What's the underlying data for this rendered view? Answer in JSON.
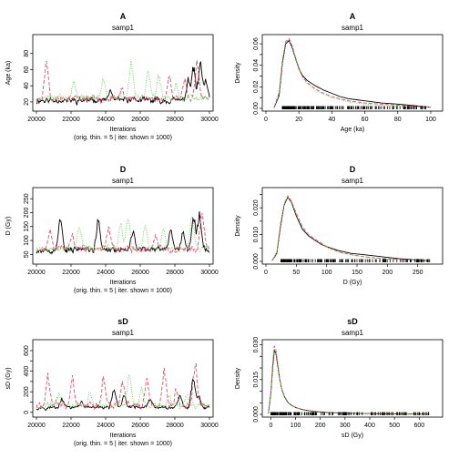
{
  "chart_data": [
    {
      "type": "line",
      "title": "A",
      "subtitle": "samp1",
      "xlabel": "Iterations",
      "xlabel2": "(orig. thin. = 5 | iter. shown = 1000)",
      "ylabel": "Age (ka)",
      "xlim": [
        20000,
        30000
      ],
      "ylim": [
        12,
        100
      ],
      "xticks": [
        20000,
        22000,
        24000,
        26000,
        28000,
        30000
      ],
      "yticks": [
        20,
        40,
        60,
        80
      ],
      "series": [
        {
          "color": "#000000",
          "dash": "",
          "seed": 11,
          "base": 18,
          "peak": 86,
          "bursts": [
            [
              23550,
              25
            ],
            [
              24250,
              40
            ],
            [
              25550,
              28
            ],
            [
              28750,
              58
            ],
            [
              29050,
              82
            ],
            [
              29450,
              85
            ],
            [
              29750,
              60
            ]
          ]
        },
        {
          "color": "#df536b",
          "dash": "4,2",
          "seed": 23,
          "base": 20,
          "peak": 88,
          "bursts": [
            [
              20550,
              85
            ],
            [
              24900,
              44
            ],
            [
              27650,
              65
            ],
            [
              28550,
              58
            ],
            [
              29250,
              88
            ]
          ]
        },
        {
          "color": "#61d04f",
          "dash": "1,1.5",
          "seed": 37,
          "base": 22,
          "peak": 86,
          "bursts": [
            [
              22150,
              52
            ],
            [
              23850,
              58
            ],
            [
              25450,
              86
            ],
            [
              26450,
              70
            ],
            [
              27050,
              62
            ],
            [
              28050,
              50
            ]
          ]
        }
      ]
    },
    {
      "type": "line",
      "title": "A",
      "subtitle": "samp1",
      "xlabel": "Age (ka)",
      "ylabel": "Density",
      "xlim": [
        0,
        105
      ],
      "ylim": [
        0,
        0.066
      ],
      "xticks": [
        0,
        20,
        40,
        60,
        80,
        100
      ],
      "yticks": [
        0.0,
        0.01,
        0.02,
        0.03,
        0.04,
        0.05,
        0.06
      ],
      "ytick_labels": [
        "0.00",
        "",
        "0.02",
        "",
        "0.04",
        "",
        "0.06"
      ],
      "rug_range": [
        10,
        97
      ],
      "series": [
        {
          "color": "#000000",
          "dash": "",
          "x": [
            5,
            8,
            10,
            12,
            14,
            16,
            18,
            20,
            22,
            25,
            30,
            35,
            40,
            45,
            50,
            55,
            60,
            70,
            80,
            90,
            100
          ],
          "y": [
            0.0005,
            0.012,
            0.042,
            0.06,
            0.063,
            0.056,
            0.046,
            0.037,
            0.031,
            0.026,
            0.021,
            0.017,
            0.014,
            0.011,
            0.009,
            0.008,
            0.007,
            0.005,
            0.004,
            0.0025,
            0.001
          ]
        },
        {
          "color": "#df536b",
          "dash": "4,2",
          "x": [
            5,
            8,
            10,
            12,
            14,
            16,
            18,
            20,
            22,
            25,
            30,
            35,
            40,
            45,
            50,
            55,
            60,
            70,
            80,
            90,
            100
          ],
          "y": [
            0.001,
            0.015,
            0.045,
            0.062,
            0.065,
            0.058,
            0.047,
            0.038,
            0.03,
            0.024,
            0.018,
            0.014,
            0.011,
            0.009,
            0.007,
            0.006,
            0.005,
            0.004,
            0.003,
            0.002,
            0.001
          ]
        },
        {
          "color": "#61d04f",
          "dash": "1,1.5",
          "x": [
            5,
            8,
            10,
            12,
            14,
            16,
            18,
            20,
            22,
            25,
            30,
            35,
            40,
            45,
            50,
            55,
            60,
            70,
            80,
            90,
            100
          ],
          "y": [
            0.0005,
            0.013,
            0.043,
            0.061,
            0.064,
            0.057,
            0.046,
            0.036,
            0.029,
            0.023,
            0.017,
            0.013,
            0.01,
            0.008,
            0.006,
            0.005,
            0.004,
            0.003,
            0.002,
            0.0015,
            0.001
          ]
        }
      ]
    },
    {
      "type": "line",
      "title": "D",
      "subtitle": "samp1",
      "xlabel": "Iterations",
      "xlabel2": "(orig. thin. = 5 | iter. shown = 1000)",
      "ylabel": "D (Gy)",
      "xlim": [
        20000,
        30000
      ],
      "ylim": [
        25,
        280
      ],
      "xticks": [
        20000,
        22000,
        24000,
        26000,
        28000,
        30000
      ],
      "yticks": [
        50,
        100,
        150,
        200,
        250
      ],
      "series": [
        {
          "color": "#000000",
          "dash": "",
          "seed": 53,
          "base": 55,
          "peak": 255,
          "bursts": [
            [
              21350,
              225
            ],
            [
              23550,
              210
            ],
            [
              25550,
              175
            ],
            [
              27750,
              180
            ],
            [
              28450,
              170
            ],
            [
              29050,
              265
            ],
            [
              29400,
              250
            ]
          ]
        },
        {
          "color": "#df536b",
          "dash": "4,2",
          "seed": 67,
          "base": 58,
          "peak": 260,
          "bursts": [
            [
              20750,
              190
            ],
            [
              22050,
              150
            ],
            [
              24150,
              180
            ],
            [
              26850,
              150
            ],
            [
              29550,
              260
            ]
          ]
        },
        {
          "color": "#61d04f",
          "dash": "1,1.5",
          "seed": 79,
          "base": 60,
          "peak": 250,
          "bursts": [
            [
              22450,
              200
            ],
            [
              24850,
              190
            ],
            [
              25250,
              245
            ],
            [
              26250,
              200
            ],
            [
              27300,
              170
            ],
            [
              28950,
              230
            ]
          ]
        }
      ]
    },
    {
      "type": "line",
      "title": "D",
      "subtitle": "samp1",
      "xlabel": "D (Gy)",
      "ylabel": "Density",
      "xlim": [
        0,
        285
      ],
      "ylim": [
        0,
        0.0265
      ],
      "xticks": [
        0,
        50,
        100,
        150,
        200,
        250
      ],
      "yticks": [
        0.0,
        0.005,
        0.01,
        0.015,
        0.02,
        0.025
      ],
      "ytick_labels": [
        "0.000",
        "",
        "0.010",
        "",
        "0.020",
        ""
      ],
      "rug_range": [
        25,
        270
      ],
      "series": [
        {
          "color": "#000000",
          "dash": "",
          "x": [
            10,
            18,
            24,
            30,
            36,
            42,
            50,
            60,
            70,
            80,
            90,
            100,
            120,
            140,
            160,
            180,
            200,
            220,
            250,
            270
          ],
          "y": [
            0.0002,
            0.003,
            0.013,
            0.021,
            0.024,
            0.022,
            0.017,
            0.012,
            0.0095,
            0.008,
            0.0065,
            0.0055,
            0.004,
            0.003,
            0.0025,
            0.002,
            0.0015,
            0.001,
            0.0005,
            0.0002
          ]
        },
        {
          "color": "#df536b",
          "dash": "4,2",
          "x": [
            10,
            18,
            24,
            30,
            36,
            42,
            50,
            60,
            70,
            80,
            90,
            100,
            120,
            140,
            160,
            180,
            200,
            220,
            250,
            270
          ],
          "y": [
            0.0002,
            0.0035,
            0.014,
            0.0215,
            0.0245,
            0.0225,
            0.018,
            0.013,
            0.01,
            0.0085,
            0.007,
            0.0055,
            0.0035,
            0.0025,
            0.0018,
            0.0013,
            0.001,
            0.0008,
            0.0005,
            0.0002
          ]
        },
        {
          "color": "#61d04f",
          "dash": "1,1.5",
          "x": [
            10,
            18,
            24,
            30,
            36,
            42,
            50,
            60,
            70,
            80,
            90,
            100,
            120,
            140,
            160,
            180,
            200,
            220,
            250,
            270
          ],
          "y": [
            0.0002,
            0.003,
            0.0135,
            0.021,
            0.0242,
            0.022,
            0.0175,
            0.0125,
            0.0098,
            0.0082,
            0.0067,
            0.0052,
            0.0034,
            0.0024,
            0.0017,
            0.0012,
            0.0009,
            0.0007,
            0.0004,
            0.0002
          ]
        }
      ]
    },
    {
      "type": "line",
      "title": "sD",
      "subtitle": "samp1",
      "xlabel": "Iterations",
      "xlabel2": "(orig. thin. = 5 | iter. shown = 1000)",
      "ylabel": "sD (Gy)",
      "xlim": [
        20000,
        30000
      ],
      "ylim": [
        -20,
        680
      ],
      "xticks": [
        20000,
        22000,
        24000,
        26000,
        28000,
        30000
      ],
      "yticks": [
        0,
        100,
        200,
        300,
        400,
        500,
        600
      ],
      "ytick_labels": [
        "0",
        "",
        "200",
        "",
        "400",
        "",
        "600"
      ],
      "series": [
        {
          "color": "#000000",
          "dash": "",
          "seed": 97,
          "base": 30,
          "peak": 320,
          "bursts": [
            [
              21450,
              170
            ],
            [
              22550,
              130
            ],
            [
              24450,
              300
            ],
            [
              25050,
              210
            ],
            [
              26550,
              170
            ],
            [
              28250,
              220
            ],
            [
              29050,
              480
            ],
            [
              29350,
              200
            ]
          ]
        },
        {
          "color": "#df536b",
          "dash": "4,2",
          "seed": 101,
          "base": 32,
          "peak": 640,
          "bursts": [
            [
              20650,
              480
            ],
            [
              22050,
              440
            ],
            [
              23850,
              460
            ],
            [
              24950,
              390
            ],
            [
              26350,
              430
            ],
            [
              27350,
              530
            ],
            [
              28050,
              300
            ],
            [
              29150,
              640
            ]
          ]
        },
        {
          "color": "#61d04f",
          "dash": "1,1.5",
          "seed": 113,
          "base": 35,
          "peak": 520,
          "bursts": [
            [
              21250,
              230
            ],
            [
              23050,
              250
            ],
            [
              25350,
              520
            ],
            [
              26050,
              280
            ],
            [
              27650,
              230
            ],
            [
              28650,
              260
            ]
          ]
        }
      ]
    },
    {
      "type": "line",
      "title": "sD",
      "subtitle": "samp1",
      "xlabel": "sD (Gy)",
      "ylabel": "Density",
      "xlim": [
        -20,
        680
      ],
      "ylim": [
        0,
        0.031
      ],
      "xticks": [
        0,
        100,
        200,
        300,
        400,
        500,
        600
      ],
      "yticks": [
        0.0,
        0.005,
        0.01,
        0.015,
        0.02,
        0.025,
        0.03
      ],
      "ytick_labels": [
        "0.000",
        "",
        "",
        "0.015",
        "",
        "",
        "0.030"
      ],
      "rug_range": [
        0,
        640
      ],
      "series": [
        {
          "color": "#000000",
          "dash": "",
          "x": [
            -10,
            0,
            8,
            14,
            20,
            28,
            36,
            45,
            55,
            70,
            85,
            100,
            130,
            160,
            200,
            250,
            300,
            400,
            500,
            640
          ],
          "y": [
            0.0003,
            0.009,
            0.021,
            0.0275,
            0.0265,
            0.021,
            0.015,
            0.0105,
            0.0075,
            0.005,
            0.0038,
            0.003,
            0.002,
            0.0015,
            0.001,
            0.0007,
            0.0005,
            0.0003,
            0.0002,
            0.0001
          ]
        },
        {
          "color": "#df536b",
          "dash": "4,2",
          "x": [
            -10,
            0,
            8,
            14,
            20,
            28,
            36,
            45,
            55,
            70,
            85,
            100,
            130,
            160,
            200,
            250,
            300,
            400,
            500,
            640
          ],
          "y": [
            0.0005,
            0.01,
            0.023,
            0.0295,
            0.028,
            0.022,
            0.0155,
            0.0108,
            0.0078,
            0.0052,
            0.0038,
            0.003,
            0.0021,
            0.0016,
            0.0011,
            0.0008,
            0.0006,
            0.0004,
            0.0003,
            0.0002
          ]
        },
        {
          "color": "#61d04f",
          "dash": "1,1.5",
          "x": [
            -10,
            0,
            8,
            14,
            20,
            28,
            36,
            45,
            55,
            70,
            85,
            100,
            130,
            160,
            200,
            250,
            300,
            400,
            500,
            640
          ],
          "y": [
            0.0004,
            0.0095,
            0.022,
            0.0285,
            0.027,
            0.0215,
            0.015,
            0.0104,
            0.0074,
            0.0049,
            0.0036,
            0.0028,
            0.0019,
            0.0014,
            0.001,
            0.0007,
            0.0005,
            0.0003,
            0.0002,
            0.0001
          ]
        }
      ]
    }
  ]
}
